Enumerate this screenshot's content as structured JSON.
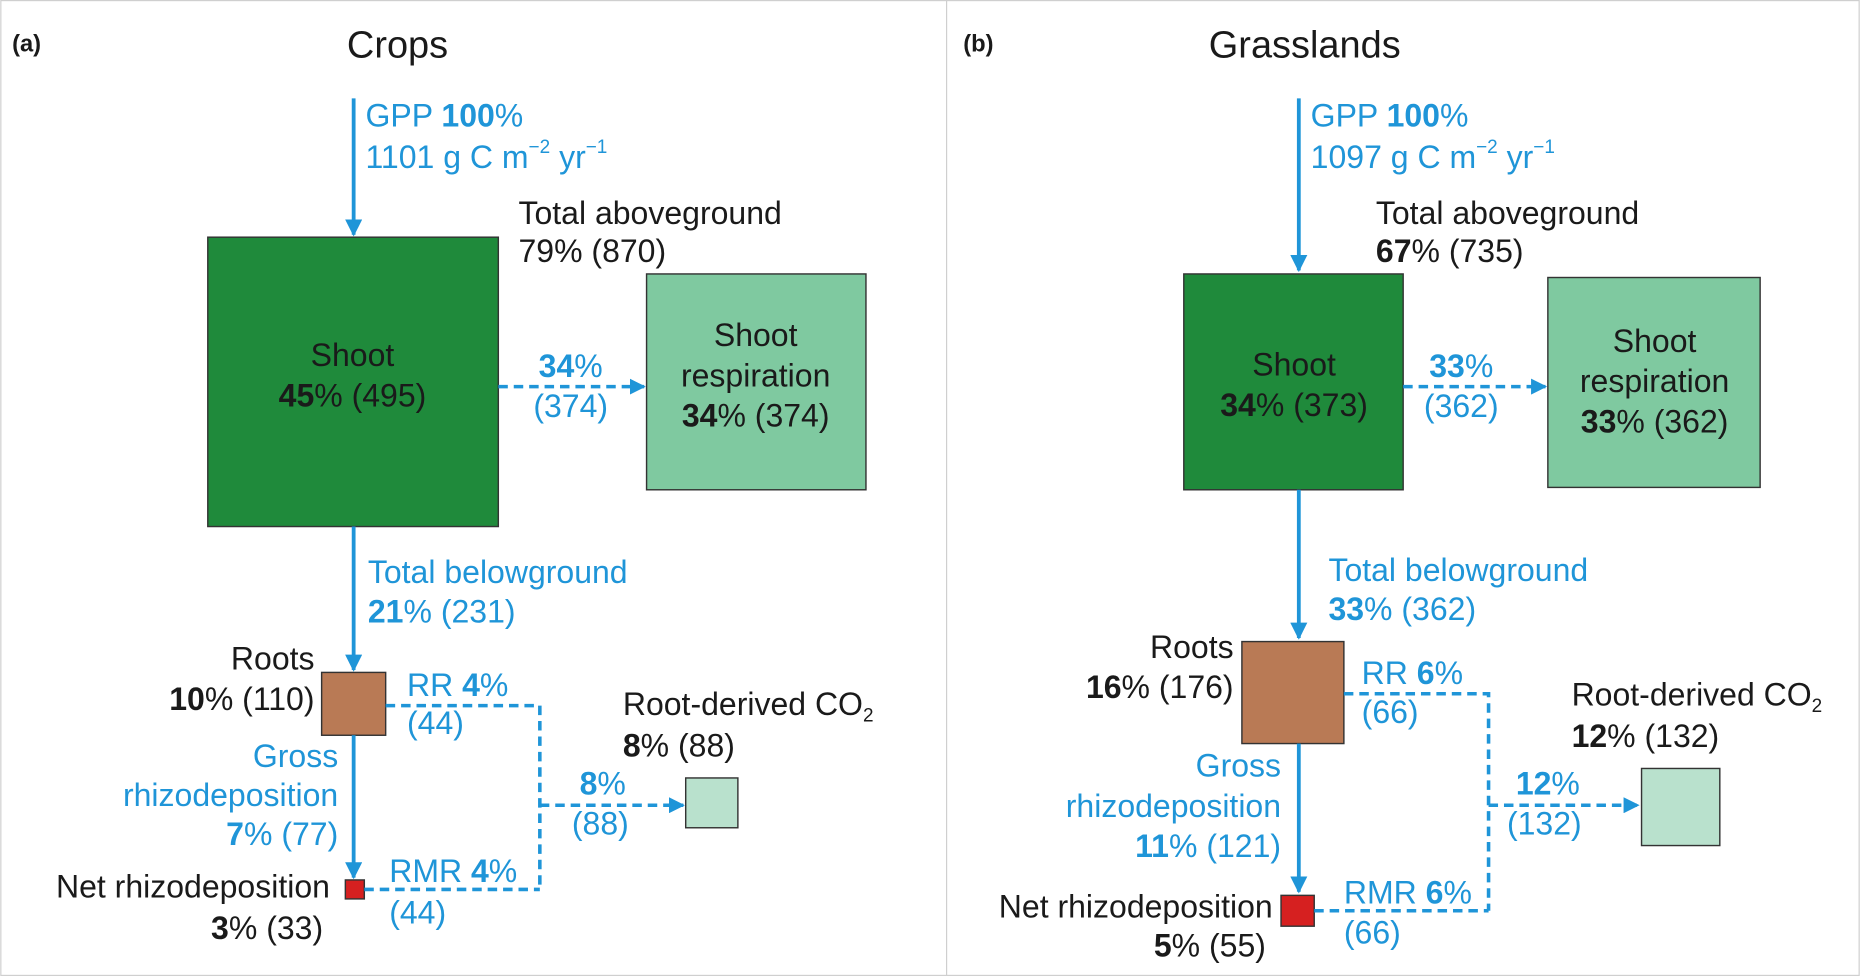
{
  "panels": [
    {
      "label": "(a)",
      "title": "Crops",
      "labels": {
        "gpp": [
          [
            {
              "t": "GPP "
            },
            {
              "t": "100",
              "b": true
            },
            {
              "t": "%"
            }
          ],
          [
            {
              "t": "1101 g C m"
            },
            {
              "t": "−2",
              "sup": true
            },
            {
              "t": " yr"
            },
            {
              "t": "−1",
              "sup": true
            }
          ]
        ],
        "aboveground": [
          [
            {
              "t": "Total aboveground"
            }
          ],
          [
            {
              "t": "79% (870)"
            }
          ]
        ],
        "shoot": [
          [
            {
              "t": "Shoot"
            }
          ],
          [
            {
              "t": "45",
              "b": true
            },
            {
              "t": "% (495)"
            }
          ]
        ],
        "shoot_flux": [
          [
            {
              "t": "34",
              "b": true
            },
            {
              "t": "%"
            }
          ],
          [
            {
              "t": "(374)"
            }
          ]
        ],
        "shoot_respiration": [
          [
            {
              "t": "Shoot"
            }
          ],
          [
            {
              "t": "respiration"
            }
          ],
          [
            {
              "t": "34",
              "b": true
            },
            {
              "t": "% (374)"
            }
          ]
        ],
        "belowground": [
          [
            {
              "t": "Total belowground"
            }
          ],
          [
            {
              "t": "21",
              "b": true
            },
            {
              "t": "% (231)"
            }
          ]
        ],
        "roots": [
          [
            {
              "t": "Roots"
            }
          ],
          [
            {
              "t": "10",
              "b": true
            },
            {
              "t": "% (110)"
            }
          ]
        ],
        "rr": [
          [
            {
              "t": "RR "
            },
            {
              "t": "4",
              "b": true
            },
            {
              "t": "%"
            }
          ],
          [
            {
              "t": "(44)"
            }
          ]
        ],
        "gross": [
          [
            {
              "t": "Gross"
            }
          ],
          [
            {
              "t": "rhizodeposition"
            }
          ],
          [
            {
              "t": "7",
              "b": true
            },
            {
              "t": "% (77)"
            }
          ]
        ],
        "net": [
          [
            {
              "t": "Net rhizodeposition"
            }
          ],
          [
            {
              "t": "3",
              "b": true
            },
            {
              "t": "% (33)"
            }
          ]
        ],
        "rmr": [
          [
            {
              "t": "RMR "
            },
            {
              "t": "4",
              "b": true
            },
            {
              "t": "%"
            }
          ],
          [
            {
              "t": "(44)"
            }
          ]
        ],
        "root_co2": [
          [
            {
              "t": "Root-derived CO"
            },
            {
              "t": "2",
              "sub": true
            }
          ],
          [
            {
              "t": "8",
              "b": true
            },
            {
              "t": "% (88)"
            }
          ]
        ],
        "co2_flux": [
          [
            {
              "t": "8",
              "b": true
            },
            {
              "t": "%"
            }
          ],
          [
            {
              "t": "(88)"
            }
          ]
        ]
      }
    },
    {
      "label": "(b)",
      "title": "Grasslands",
      "labels": {
        "gpp": [
          [
            {
              "t": "GPP "
            },
            {
              "t": "100",
              "b": true
            },
            {
              "t": "%"
            }
          ],
          [
            {
              "t": "1097 g C m"
            },
            {
              "t": "−2",
              "sup": true
            },
            {
              "t": " yr"
            },
            {
              "t": "−1",
              "sup": true
            }
          ]
        ],
        "aboveground": [
          [
            {
              "t": "Total aboveground"
            }
          ],
          [
            {
              "t": "67",
              "b": true
            },
            {
              "t": "% (735)"
            }
          ]
        ],
        "shoot": [
          [
            {
              "t": "Shoot"
            }
          ],
          [
            {
              "t": "34",
              "b": true
            },
            {
              "t": "% (373)"
            }
          ]
        ],
        "shoot_flux": [
          [
            {
              "t": "33",
              "b": true
            },
            {
              "t": "%"
            }
          ],
          [
            {
              "t": "(362)"
            }
          ]
        ],
        "shoot_respiration": [
          [
            {
              "t": "Shoot"
            }
          ],
          [
            {
              "t": "respiration"
            }
          ],
          [
            {
              "t": "33",
              "b": true
            },
            {
              "t": "% (362)"
            }
          ]
        ],
        "belowground": [
          [
            {
              "t": "Total belowground"
            }
          ],
          [
            {
              "t": "33",
              "b": true
            },
            {
              "t": "% (362)"
            }
          ]
        ],
        "roots": [
          [
            {
              "t": "Roots"
            }
          ],
          [
            {
              "t": "16",
              "b": true
            },
            {
              "t": "% (176)"
            }
          ]
        ],
        "rr": [
          [
            {
              "t": "RR "
            },
            {
              "t": "6",
              "b": true
            },
            {
              "t": "%"
            }
          ],
          [
            {
              "t": "(66)"
            }
          ]
        ],
        "gross": [
          [
            {
              "t": "Gross"
            }
          ],
          [
            {
              "t": "rhizodeposition"
            }
          ],
          [
            {
              "t": "11",
              "b": true
            },
            {
              "t": "% (121)"
            }
          ]
        ],
        "net": [
          [
            {
              "t": "Net rhizodeposition"
            }
          ],
          [
            {
              "t": "5",
              "b": true
            },
            {
              "t": "% (55)"
            }
          ]
        ],
        "rmr": [
          [
            {
              "t": "RMR "
            },
            {
              "t": "6",
              "b": true
            },
            {
              "t": "%"
            }
          ],
          [
            {
              "t": "(66)"
            }
          ]
        ],
        "root_co2": [
          [
            {
              "t": "Root-derived CO"
            },
            {
              "t": "2",
              "sub": true
            }
          ],
          [
            {
              "t": "12",
              "b": true
            },
            {
              "t": "% (132)"
            }
          ]
        ],
        "co2_flux": [
          [
            {
              "t": "12",
              "b": true
            },
            {
              "t": "%"
            }
          ],
          [
            {
              "t": "(132)"
            }
          ]
        ]
      }
    }
  ]
}
